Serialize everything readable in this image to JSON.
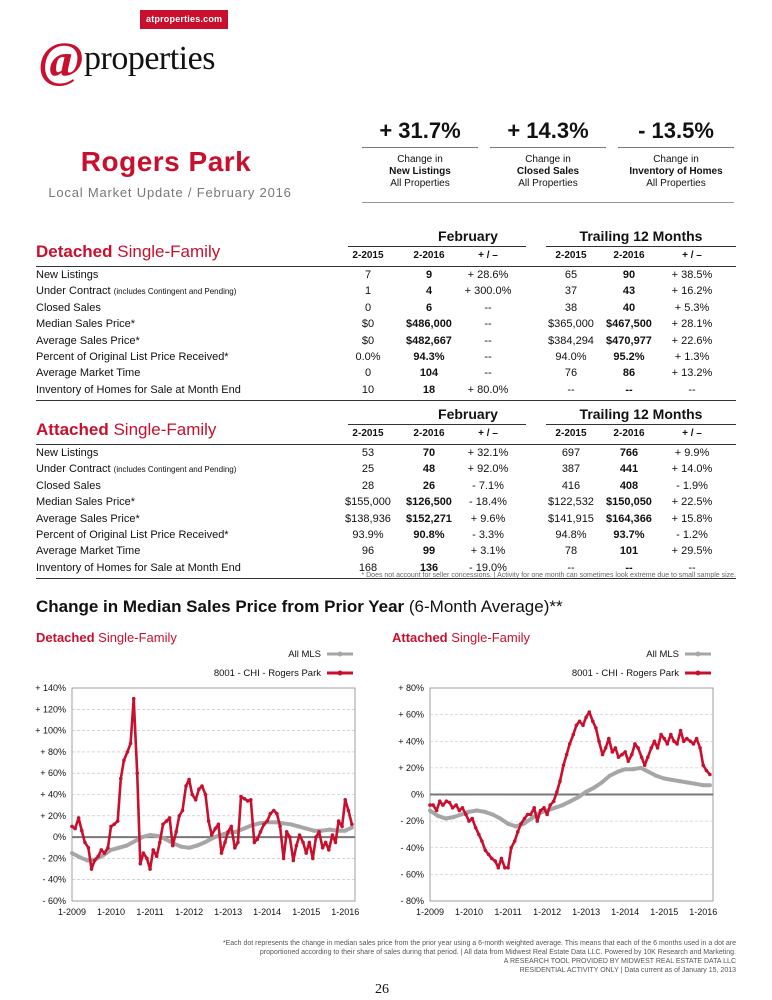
{
  "header": {
    "site_url": "atproperties.com",
    "logo_at": "@",
    "logo_word": "properties"
  },
  "area": {
    "title": "Rogers Park",
    "subtitle": "Local Market Update / February 2016"
  },
  "kpis": [
    {
      "value": "+ 31.7%",
      "line1": "Change in",
      "line2": "New Listings",
      "line3": "All Properties"
    },
    {
      "value": "+ 14.3%",
      "line1": "Change in",
      "line2": "Closed Sales",
      "line3": "All Properties"
    },
    {
      "value": "- 13.5%",
      "line1": "Change in",
      "line2": "Inventory of Homes",
      "line3": "All Properties"
    }
  ],
  "groups": {
    "month": "February",
    "trailing": "Trailing 12 Months"
  },
  "columns": [
    "2-2015",
    "2-2016",
    "+ / –",
    "2-2015",
    "2-2016",
    "+ / –"
  ],
  "row_labels": [
    {
      "main": "New Listings",
      "small": ""
    },
    {
      "main": "Under Contract",
      "small": "(includes Contingent and Pending)"
    },
    {
      "main": "Closed Sales",
      "small": ""
    },
    {
      "main": "Median Sales Price*",
      "small": ""
    },
    {
      "main": "Average Sales Price*",
      "small": ""
    },
    {
      "main": "Percent of Original List Price Received*",
      "small": ""
    },
    {
      "main": "Average Market Time",
      "small": ""
    },
    {
      "main": "Inventory of Homes for Sale at Month End",
      "small": ""
    }
  ],
  "detached": {
    "title_bold": "Detached",
    "title_rest": " Single-Family",
    "rows": [
      [
        "7",
        "9",
        "+ 28.6%",
        "65",
        "90",
        "+ 38.5%"
      ],
      [
        "1",
        "4",
        "+ 300.0%",
        "37",
        "43",
        "+ 16.2%"
      ],
      [
        "0",
        "6",
        "--",
        "38",
        "40",
        "+ 5.3%"
      ],
      [
        "$0",
        "$486,000",
        "--",
        "$365,000",
        "$467,500",
        "+ 28.1%"
      ],
      [
        "$0",
        "$482,667",
        "--",
        "$384,294",
        "$470,977",
        "+ 22.6%"
      ],
      [
        "0.0%",
        "94.3%",
        "--",
        "94.0%",
        "95.2%",
        "+ 1.3%"
      ],
      [
        "0",
        "104",
        "--",
        "76",
        "86",
        "+ 13.2%"
      ],
      [
        "10",
        "18",
        "+ 80.0%",
        "--",
        "--",
        "--"
      ]
    ]
  },
  "attached": {
    "title_bold": "Attached",
    "title_rest": " Single-Family",
    "rows": [
      [
        "53",
        "70",
        "+ 32.1%",
        "697",
        "766",
        "+ 9.9%"
      ],
      [
        "25",
        "48",
        "+ 92.0%",
        "387",
        "441",
        "+ 14.0%"
      ],
      [
        "28",
        "26",
        "- 7.1%",
        "416",
        "408",
        "- 1.9%"
      ],
      [
        "$155,000",
        "$126,500",
        "- 18.4%",
        "$122,532",
        "$150,050",
        "+ 22.5%"
      ],
      [
        "$138,936",
        "$152,271",
        "+ 9.6%",
        "$141,915",
        "$164,366",
        "+ 15.8%"
      ],
      [
        "93.9%",
        "90.8%",
        "- 3.3%",
        "94.8%",
        "93.7%",
        "- 1.2%"
      ],
      [
        "96",
        "99",
        "+ 3.1%",
        "78",
        "101",
        "+ 29.5%"
      ],
      [
        "168",
        "136",
        "- 19.0%",
        "--",
        "--",
        "--"
      ]
    ]
  },
  "footnote": "* Does not account for seller concessions.  |  Activity for one month can sometimes look extreme due to small sample size.",
  "median_section": {
    "title": "Change in Median Sales Price from Prior Year",
    "title_rest": " (6-Month Average)**"
  },
  "colors": {
    "accent": "#c8102e",
    "all_mls": "#a6a6a6",
    "area": "#c8102e"
  },
  "chart_data": [
    {
      "type": "line",
      "title_bold": "Detached",
      "title_rest": " Single-Family",
      "x_tick_labels": [
        "1-2009",
        "1-2010",
        "1-2011",
        "1-2012",
        "1-2013",
        "1-2014",
        "1-2015",
        "1-2016"
      ],
      "y_tick_labels": [
        "+ 140%",
        "+ 120%",
        "+ 100%",
        "+ 80%",
        "+ 60%",
        "+ 40%",
        "+ 20%",
        "0%",
        "- 20%",
        "- 40%",
        "- 60%"
      ],
      "ylim": [
        -60,
        140
      ],
      "y_ticks": [
        140,
        120,
        100,
        80,
        60,
        40,
        20,
        0,
        -20,
        -40,
        -60
      ],
      "xlim": [
        2009.0,
        2016.25
      ],
      "grid": true,
      "legend_placement": "top-right",
      "series": [
        {
          "name": "All MLS",
          "x": [
            2009.0,
            2009.2,
            2009.4,
            2009.6,
            2009.8,
            2010.0,
            2010.2,
            2010.4,
            2010.6,
            2010.8,
            2011.0,
            2011.2,
            2011.4,
            2011.6,
            2011.8,
            2012.0,
            2012.2,
            2012.4,
            2012.6,
            2012.8,
            2013.0,
            2013.2,
            2013.4,
            2013.6,
            2013.8,
            2014.0,
            2014.2,
            2014.4,
            2014.6,
            2014.8,
            2015.0,
            2015.2,
            2015.4,
            2015.6,
            2015.8,
            2016.0,
            2016.17
          ],
          "y": [
            -15,
            -19,
            -22,
            -21,
            -17,
            -12,
            -10,
            -8,
            -4,
            0,
            2,
            1,
            -2,
            -6,
            -9,
            -10,
            -8,
            -5,
            -1,
            2,
            4,
            5,
            8,
            11,
            13,
            14,
            14,
            13,
            12,
            10,
            8,
            6,
            6,
            7,
            6,
            6,
            9
          ]
        },
        {
          "name": "8001 - CHI - Rogers Park",
          "x": [
            2009.0,
            2009.08,
            2009.17,
            2009.25,
            2009.33,
            2009.42,
            2009.5,
            2009.58,
            2009.67,
            2009.75,
            2009.83,
            2009.92,
            2010.0,
            2010.08,
            2010.17,
            2010.25,
            2010.33,
            2010.42,
            2010.5,
            2010.58,
            2010.67,
            2010.75,
            2010.83,
            2010.92,
            2011.0,
            2011.08,
            2011.17,
            2011.25,
            2011.33,
            2011.42,
            2011.5,
            2011.58,
            2011.67,
            2011.75,
            2011.83,
            2011.92,
            2012.0,
            2012.08,
            2012.17,
            2012.25,
            2012.33,
            2012.42,
            2012.5,
            2012.58,
            2012.67,
            2012.75,
            2012.83,
            2012.92,
            2013.0,
            2013.08,
            2013.17,
            2013.25,
            2013.33,
            2013.42,
            2013.5,
            2013.58,
            2013.67,
            2013.75,
            2013.83,
            2013.92,
            2014.0,
            2014.08,
            2014.17,
            2014.25,
            2014.33,
            2014.42,
            2014.5,
            2014.58,
            2014.67,
            2014.75,
            2014.83,
            2014.92,
            2015.0,
            2015.08,
            2015.17,
            2015.25,
            2015.33,
            2015.42,
            2015.5,
            2015.58,
            2015.67,
            2015.75,
            2015.83,
            2015.92,
            2016.0,
            2016.08,
            2016.17
          ],
          "y": [
            10,
            8,
            18,
            6,
            -5,
            -10,
            -30,
            -22,
            -18,
            -12,
            -15,
            -10,
            10,
            12,
            15,
            55,
            72,
            80,
            88,
            130,
            60,
            -25,
            -15,
            -20,
            -30,
            -12,
            -18,
            -5,
            12,
            15,
            18,
            -8,
            5,
            20,
            25,
            48,
            54,
            40,
            35,
            45,
            48,
            40,
            15,
            2,
            8,
            12,
            -15,
            -5,
            5,
            10,
            -10,
            -5,
            38,
            36,
            34,
            35,
            -5,
            -2,
            5,
            12,
            15,
            22,
            25,
            22,
            10,
            -20,
            5,
            0,
            -22,
            -8,
            2,
            -5,
            -15,
            -5,
            -20,
            0,
            5,
            -10,
            -5,
            -12,
            2,
            -5,
            15,
            10,
            35,
            25,
            12
          ]
        }
      ]
    },
    {
      "type": "line",
      "title_bold": "Attached",
      "title_rest": " Single-Family",
      "x_tick_labels": [
        "1-2009",
        "1-2010",
        "1-2011",
        "1-2012",
        "1-2013",
        "1-2014",
        "1-2015",
        "1-2016"
      ],
      "y_tick_labels": [
        "+ 80%",
        "+ 60%",
        "+ 40%",
        "+ 20%",
        "0%",
        "- 20%",
        "- 40%",
        "- 60%",
        "- 80%"
      ],
      "ylim": [
        -80,
        80
      ],
      "y_ticks": [
        80,
        60,
        40,
        20,
        0,
        -20,
        -40,
        -60,
        -80
      ],
      "xlim": [
        2009.0,
        2016.25
      ],
      "grid": true,
      "legend_placement": "top-right",
      "series": [
        {
          "name": "All MLS",
          "x": [
            2009.0,
            2009.2,
            2009.4,
            2009.6,
            2009.8,
            2010.0,
            2010.2,
            2010.4,
            2010.6,
            2010.8,
            2011.0,
            2011.2,
            2011.4,
            2011.6,
            2011.8,
            2012.0,
            2012.2,
            2012.4,
            2012.6,
            2012.8,
            2013.0,
            2013.2,
            2013.4,
            2013.6,
            2013.8,
            2014.0,
            2014.2,
            2014.4,
            2014.6,
            2014.8,
            2015.0,
            2015.2,
            2015.4,
            2015.6,
            2015.8,
            2016.0,
            2016.17
          ],
          "y": [
            -12,
            -16,
            -18,
            -17,
            -15,
            -13,
            -12,
            -13,
            -15,
            -18,
            -22,
            -24,
            -22,
            -18,
            -14,
            -12,
            -10,
            -8,
            -5,
            -2,
            2,
            5,
            9,
            14,
            17,
            19,
            19,
            20,
            17,
            14,
            12,
            11,
            10,
            9,
            8,
            7,
            7
          ]
        },
        {
          "name": "8001 - CHI - Rogers Park",
          "x": [
            2009.0,
            2009.08,
            2009.17,
            2009.25,
            2009.33,
            2009.42,
            2009.5,
            2009.58,
            2009.67,
            2009.75,
            2009.83,
            2009.92,
            2010.0,
            2010.08,
            2010.17,
            2010.25,
            2010.33,
            2010.42,
            2010.5,
            2010.58,
            2010.67,
            2010.75,
            2010.83,
            2010.92,
            2011.0,
            2011.08,
            2011.17,
            2011.25,
            2011.33,
            2011.42,
            2011.5,
            2011.58,
            2011.67,
            2011.75,
            2011.83,
            2011.92,
            2012.0,
            2012.08,
            2012.17,
            2012.25,
            2012.33,
            2012.42,
            2012.5,
            2012.58,
            2012.67,
            2012.75,
            2012.83,
            2012.92,
            2013.0,
            2013.08,
            2013.17,
            2013.25,
            2013.33,
            2013.42,
            2013.5,
            2013.58,
            2013.67,
            2013.75,
            2013.83,
            2013.92,
            2014.0,
            2014.08,
            2014.17,
            2014.25,
            2014.33,
            2014.42,
            2014.5,
            2014.58,
            2014.67,
            2014.75,
            2014.83,
            2014.92,
            2015.0,
            2015.08,
            2015.17,
            2015.25,
            2015.33,
            2015.42,
            2015.5,
            2015.58,
            2015.67,
            2015.75,
            2015.83,
            2015.92,
            2016.0,
            2016.08,
            2016.17
          ],
          "y": [
            -8,
            -8,
            -12,
            -5,
            -8,
            -5,
            -6,
            -10,
            -8,
            -12,
            -10,
            -15,
            -20,
            -18,
            -25,
            -30,
            -35,
            -42,
            -45,
            -48,
            -50,
            -55,
            -48,
            -55,
            -55,
            -40,
            -35,
            -28,
            -22,
            -18,
            -15,
            -15,
            -10,
            -20,
            -12,
            -10,
            -15,
            -8,
            -5,
            2,
            10,
            22,
            30,
            38,
            45,
            52,
            55,
            52,
            58,
            62,
            55,
            50,
            40,
            30,
            35,
            42,
            32,
            35,
            28,
            30,
            32,
            25,
            30,
            38,
            35,
            28,
            22,
            28,
            35,
            40,
            35,
            45,
            42,
            38,
            45,
            40,
            38,
            48,
            40,
            42,
            40,
            38,
            42,
            35,
            22,
            18,
            15
          ]
        }
      ]
    }
  ],
  "bottom_note": {
    "line1": "*Each dot represents the change in median sales price from the prior year using a 6-month weighted average. This means that each of the 6 months used in a dot are",
    "line2": "proportioned according to their share of sales during that period.  |  All data from Midwest Real Estate Data LLC. Powered by 10K Research and Marketing.",
    "line3": "A RESEARCH TOOL PROVIDED BY MIDWEST REAL ESTATE DATA LLC",
    "line4": "RESIDENTIAL ACTIVITY ONLY  |  Data current as of January 15, 2013"
  },
  "page_number": "26"
}
